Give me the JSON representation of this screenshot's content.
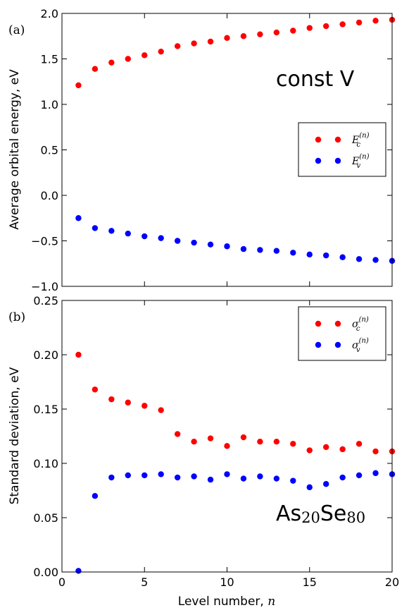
{
  "chart_data": [
    {
      "type": "scatter",
      "panel_label": "(a)",
      "annotation": "const V",
      "ylabel": "Average orbital energy, eV",
      "xlim": [
        0,
        20
      ],
      "ylim": [
        -1.0,
        2.0
      ],
      "xticks": [
        0,
        5,
        10,
        15,
        20
      ],
      "yticks": [
        -1.0,
        -0.5,
        0.0,
        0.5,
        1.0,
        1.5,
        2.0
      ],
      "ytick_labels": [
        "−1.0",
        "−0.5",
        "0.0",
        "0.5",
        "1.0",
        "1.5",
        "2.0"
      ],
      "legend_position": "center-right",
      "grid": false,
      "x": [
        1,
        2,
        3,
        4,
        5,
        6,
        7,
        8,
        9,
        10,
        11,
        12,
        13,
        14,
        15,
        16,
        17,
        18,
        19,
        20
      ],
      "series": [
        {
          "name": "E_c^(n)",
          "legend_base": "E",
          "legend_sub": "c",
          "legend_sup": "(n)",
          "color": "#ff0000",
          "values": [
            1.21,
            1.39,
            1.46,
            1.5,
            1.54,
            1.58,
            1.64,
            1.67,
            1.69,
            1.73,
            1.75,
            1.77,
            1.79,
            1.81,
            1.84,
            1.86,
            1.88,
            1.9,
            1.92,
            1.93
          ]
        },
        {
          "name": "E_v^(n)",
          "legend_base": "E",
          "legend_sub": "v",
          "legend_sup": "(n)",
          "color": "#0000ff",
          "values": [
            -0.25,
            -0.36,
            -0.39,
            -0.42,
            -0.45,
            -0.47,
            -0.5,
            -0.52,
            -0.54,
            -0.56,
            -0.59,
            -0.6,
            -0.61,
            -0.63,
            -0.65,
            -0.66,
            -0.68,
            -0.7,
            -0.71,
            -0.72
          ]
        }
      ]
    },
    {
      "type": "scatter",
      "panel_label": "(b)",
      "annotation_base": "As",
      "annotation_sub1": "20",
      "annotation_mid": "Se",
      "annotation_sub2": "80",
      "xlabel_text": "Level number, ",
      "xlabel_var": "n",
      "ylabel": "Standard deviation, eV",
      "xlim": [
        0,
        20
      ],
      "ylim": [
        0.0,
        0.25
      ],
      "xticks": [
        0,
        5,
        10,
        15,
        20
      ],
      "yticks": [
        0.0,
        0.05,
        0.1,
        0.15,
        0.2,
        0.25
      ],
      "ytick_labels": [
        "0.00",
        "0.05",
        "0.10",
        "0.15",
        "0.20",
        "0.25"
      ],
      "legend_position": "top-right",
      "grid": false,
      "x": [
        1,
        2,
        3,
        4,
        5,
        6,
        7,
        8,
        9,
        10,
        11,
        12,
        13,
        14,
        15,
        16,
        17,
        18,
        19,
        20
      ],
      "series": [
        {
          "name": "sigma_c^(n)",
          "legend_base": "σ",
          "legend_sub": "c",
          "legend_sup": "(n)",
          "color": "#ff0000",
          "values": [
            0.2,
            0.168,
            0.159,
            0.156,
            0.153,
            0.149,
            0.127,
            0.12,
            0.123,
            0.116,
            0.124,
            0.12,
            0.12,
            0.118,
            0.112,
            0.115,
            0.113,
            0.118,
            0.111,
            0.111
          ]
        },
        {
          "name": "sigma_v^(n)",
          "legend_base": "σ",
          "legend_sub": "v",
          "legend_sup": "(n)",
          "color": "#0000ff",
          "values": [
            0.001,
            0.07,
            0.087,
            0.089,
            0.089,
            0.09,
            0.087,
            0.088,
            0.085,
            0.09,
            0.086,
            0.088,
            0.086,
            0.084,
            0.078,
            0.081,
            0.087,
            0.089,
            0.091,
            0.09
          ]
        }
      ]
    }
  ]
}
